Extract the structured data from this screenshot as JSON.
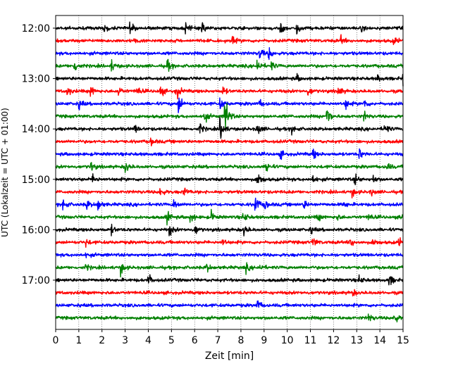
{
  "chart_data": {
    "type": "line",
    "title": "",
    "xlabel": "Zeit  [min]",
    "ylabel": "UTC (Lokalzeit = UTC + 01:00)",
    "xlim": [
      0,
      15
    ],
    "x_ticks": [
      0,
      1,
      2,
      3,
      4,
      5,
      6,
      7,
      8,
      9,
      10,
      11,
      12,
      13,
      14,
      15
    ],
    "x_tick_labels": [
      "0",
      "1",
      "2",
      "3",
      "4",
      "5",
      "6",
      "7",
      "8",
      "9",
      "10",
      "11",
      "12",
      "13",
      "14",
      "15"
    ],
    "y_tick_labels": [
      "12:00",
      "13:00",
      "14:00",
      "15:00",
      "16:00",
      "17:00"
    ],
    "row_start": "12:00",
    "row_interval_min": 15,
    "grid_x": true,
    "color_cycle": [
      "#000000",
      "#ff0000",
      "#0000ff",
      "#008000"
    ],
    "rows": [
      {
        "start": "12:00",
        "color": "#000000",
        "bursts": [
          [
            2.1,
            0.35
          ],
          [
            3.2,
            0.45
          ],
          [
            5.6,
            0.5
          ],
          [
            6.3,
            0.6
          ],
          [
            9.7,
            0.45
          ],
          [
            10.4,
            0.5
          ],
          [
            13.2,
            0.2
          ]
        ]
      },
      {
        "start": "12:15",
        "color": "#ff0000",
        "bursts": [
          [
            3.4,
            0.2
          ],
          [
            7.6,
            0.35
          ],
          [
            12.3,
            0.35
          ],
          [
            14.6,
            0.35
          ]
        ]
      },
      {
        "start": "12:30",
        "color": "#0000ff",
        "bursts": [
          [
            8.8,
            0.6
          ],
          [
            9.2,
            0.5
          ]
        ]
      },
      {
        "start": "12:45",
        "color": "#008000",
        "bursts": [
          [
            0.8,
            0.6
          ],
          [
            2.4,
            0.45
          ],
          [
            4.8,
            0.55
          ],
          [
            8.7,
            0.7
          ],
          [
            9.3,
            0.35
          ]
        ]
      },
      {
        "start": "13:00",
        "color": "#000000",
        "bursts": [
          [
            10.4,
            0.3
          ],
          [
            13.9,
            0.3
          ],
          [
            15.0,
            0.5
          ]
        ]
      },
      {
        "start": "13:15",
        "color": "#ff0000",
        "bursts": [
          [
            0.5,
            0.45
          ],
          [
            1.5,
            0.5
          ],
          [
            2.7,
            0.45
          ],
          [
            3.5,
            0.45
          ],
          [
            4.5,
            0.5
          ],
          [
            5.2,
            0.7
          ],
          [
            7.2,
            0.4
          ],
          [
            10.9,
            0.45
          ],
          [
            12.2,
            0.45
          ]
        ]
      },
      {
        "start": "13:30",
        "color": "#0000ff",
        "bursts": [
          [
            1.0,
            0.4
          ],
          [
            5.3,
            0.9
          ],
          [
            7.1,
            0.5
          ],
          [
            8.8,
            0.3
          ],
          [
            12.5,
            0.5
          ],
          [
            13.3,
            0.4
          ]
        ]
      },
      {
        "start": "13:45",
        "color": "#008000",
        "bursts": [
          [
            6.4,
            0.55
          ],
          [
            7.3,
            2.2
          ],
          [
            11.7,
            1.1
          ],
          [
            13.3,
            0.4
          ]
        ]
      },
      {
        "start": "14:00",
        "color": "#000000",
        "bursts": [
          [
            3.4,
            0.35
          ],
          [
            6.2,
            0.45
          ],
          [
            7.1,
            1.2
          ],
          [
            8.7,
            0.55
          ],
          [
            10.2,
            0.4
          ],
          [
            14.2,
            0.5
          ]
        ]
      },
      {
        "start": "14:15",
        "color": "#ff0000",
        "bursts": [
          [
            4.1,
            0.35
          ]
        ]
      },
      {
        "start": "14:30",
        "color": "#0000ff",
        "bursts": [
          [
            9.7,
            0.35
          ],
          [
            11.1,
            0.45
          ],
          [
            13.1,
            0.45
          ]
        ]
      },
      {
        "start": "14:45",
        "color": "#008000",
        "bursts": [
          [
            1.5,
            0.45
          ],
          [
            3.0,
            0.55
          ],
          [
            9.1,
            0.55
          ],
          [
            14.3,
            0.35
          ]
        ]
      },
      {
        "start": "15:00",
        "color": "#000000",
        "bursts": [
          [
            1.6,
            0.45
          ],
          [
            8.7,
            0.8
          ],
          [
            11.1,
            0.4
          ],
          [
            12.9,
            0.5
          ],
          [
            13.7,
            0.35
          ]
        ]
      },
      {
        "start": "15:15",
        "color": "#ff0000",
        "bursts": [
          [
            4.5,
            0.45
          ],
          [
            5.5,
            0.5
          ],
          [
            12.8,
            0.35
          ],
          [
            13.6,
            0.3
          ]
        ]
      },
      {
        "start": "15:30",
        "color": "#0000ff",
        "bursts": [
          [
            0.3,
            0.55
          ],
          [
            1.3,
            0.5
          ],
          [
            1.8,
            0.6
          ],
          [
            5.1,
            0.45
          ],
          [
            8.6,
            0.9
          ],
          [
            9.0,
            0.5
          ],
          [
            10.7,
            0.4
          ],
          [
            12.4,
            0.35
          ]
        ]
      },
      {
        "start": "15:45",
        "color": "#008000",
        "bursts": [
          [
            4.8,
            0.55
          ],
          [
            5.8,
            0.5
          ],
          [
            6.7,
            0.45
          ],
          [
            8.1,
            0.5
          ],
          [
            11.3,
            0.35
          ],
          [
            12.1,
            0.35
          ],
          [
            13.5,
            0.35
          ],
          [
            14.9,
            0.45
          ]
        ]
      },
      {
        "start": "16:00",
        "color": "#000000",
        "bursts": [
          [
            2.4,
            0.35
          ],
          [
            4.9,
            0.5
          ],
          [
            6.0,
            0.45
          ],
          [
            8.1,
            0.55
          ],
          [
            11.0,
            0.3
          ]
        ]
      },
      {
        "start": "16:15",
        "color": "#ff0000",
        "bursts": [
          [
            1.3,
            0.3
          ],
          [
            7.2,
            0.3
          ],
          [
            11.1,
            0.45
          ],
          [
            12.7,
            0.45
          ],
          [
            13.7,
            0.35
          ],
          [
            14.8,
            0.35
          ]
        ]
      },
      {
        "start": "16:30",
        "color": "#0000ff",
        "bursts": [
          [
            1.3,
            0.2
          ]
        ]
      },
      {
        "start": "16:45",
        "color": "#008000",
        "bursts": [
          [
            1.3,
            0.25
          ],
          [
            2.8,
            0.55
          ],
          [
            6.5,
            0.4
          ],
          [
            8.2,
            0.35
          ],
          [
            8.8,
            0.3
          ]
        ]
      },
      {
        "start": "17:00",
        "color": "#000000",
        "bursts": [
          [
            4.0,
            0.5
          ],
          [
            13.1,
            0.35
          ],
          [
            14.4,
            0.55
          ]
        ]
      },
      {
        "start": "17:15",
        "color": "#ff0000",
        "bursts": [
          [
            12.8,
            0.3
          ]
        ]
      },
      {
        "start": "17:30",
        "color": "#0000ff",
        "bursts": [
          [
            8.7,
            0.5
          ]
        ]
      },
      {
        "start": "17:45",
        "color": "#008000",
        "bursts": [
          [
            13.5,
            0.4
          ],
          [
            14.6,
            0.6
          ]
        ]
      }
    ]
  }
}
